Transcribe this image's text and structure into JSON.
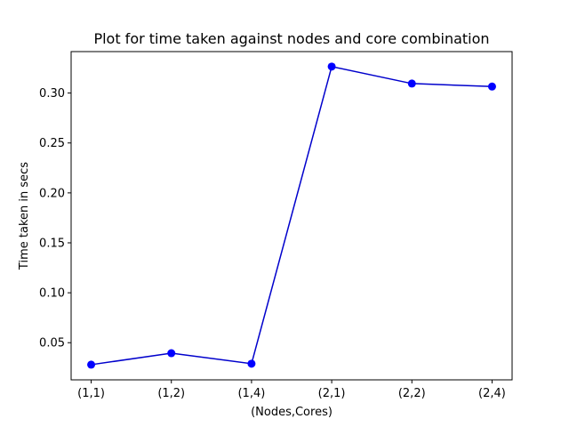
{
  "chart_data": {
    "type": "line",
    "title": "Plot for time taken against nodes and core combination",
    "xlabel": "(Nodes,Cores)",
    "ylabel": "Time taken in secs",
    "categories": [
      "(1,1)",
      "(1,2)",
      "(1,4)",
      "(2,1)",
      "(2,2)",
      "(2,4)"
    ],
    "series": [
      {
        "values": [
          0.028,
          0.0395,
          0.029,
          0.3265,
          0.3095,
          0.3065
        ]
      }
    ],
    "ylim": [
      0.0128,
      0.3415
    ],
    "yticks": [
      0.05,
      0.1,
      0.15,
      0.2,
      0.25,
      0.3
    ],
    "ytick_labels": [
      "0.05",
      "0.10",
      "0.15",
      "0.20",
      "0.25",
      "0.30"
    ],
    "grid": false,
    "legend": "none",
    "colors": {
      "line": "#0000cc",
      "marker": "#0000ff",
      "axes": "#000000"
    }
  }
}
